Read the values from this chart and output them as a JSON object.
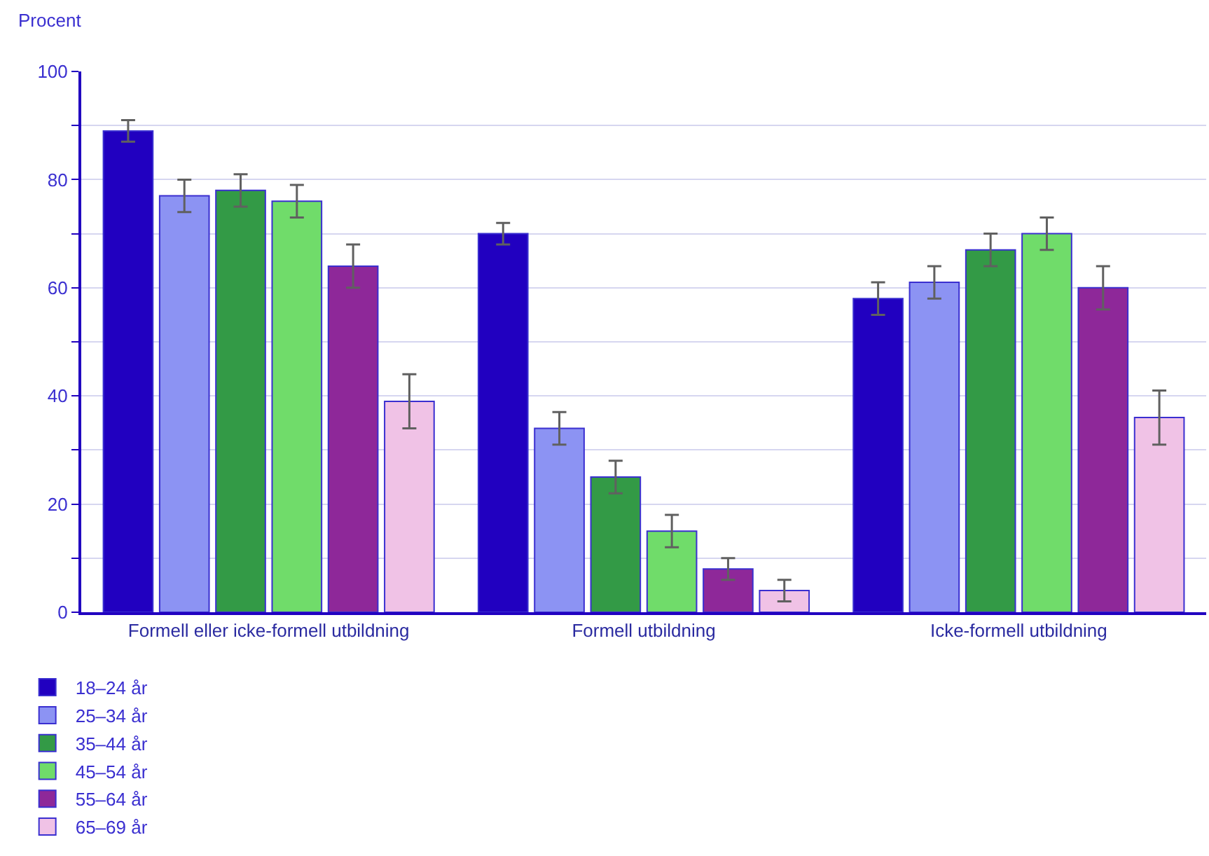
{
  "chart_data": {
    "type": "bar",
    "ylabel": "Procent",
    "categories": [
      "Formell eller icke-formell utbildning",
      "Formell utbildning",
      "Icke-formell utbildning"
    ],
    "series": [
      {
        "name": "18–24 år",
        "color": "#2100c0",
        "values": [
          89,
          70,
          58
        ],
        "errors": [
          [
            87,
            91
          ],
          [
            68,
            72
          ],
          [
            55,
            61
          ]
        ]
      },
      {
        "name": "25–34 år",
        "color": "#8c93f3",
        "values": [
          77,
          34,
          61
        ],
        "errors": [
          [
            74,
            80
          ],
          [
            31,
            37
          ],
          [
            58,
            64
          ]
        ]
      },
      {
        "name": "35–44 år",
        "color": "#339a46",
        "values": [
          78,
          25,
          67
        ],
        "errors": [
          [
            75,
            81
          ],
          [
            22,
            28
          ],
          [
            64,
            70
          ]
        ]
      },
      {
        "name": "45–54 år",
        "color": "#70dc6a",
        "values": [
          76,
          15,
          70
        ],
        "errors": [
          [
            73,
            79
          ],
          [
            12,
            18
          ],
          [
            67,
            73
          ]
        ]
      },
      {
        "name": "55–64 år",
        "color": "#8e2899",
        "values": [
          64,
          8,
          60
        ],
        "errors": [
          [
            60,
            68
          ],
          [
            6,
            10
          ],
          [
            56,
            64
          ]
        ]
      },
      {
        "name": "65–69 år",
        "color": "#f0c2e6",
        "values": [
          39,
          4,
          36
        ],
        "errors": [
          [
            34,
            44
          ],
          [
            2,
            6
          ],
          [
            31,
            41
          ]
        ]
      }
    ],
    "ylim": [
      0,
      100
    ],
    "yticks": [
      0,
      {
        "value": 10,
        "label": null
      },
      20,
      {
        "value": 30,
        "label": null
      },
      40,
      {
        "value": 50,
        "label": null
      },
      60,
      {
        "value": 70,
        "label": null
      },
      80,
      {
        "value": 90,
        "label": null
      },
      100
    ],
    "grid": "y",
    "legend": "bottom left"
  }
}
